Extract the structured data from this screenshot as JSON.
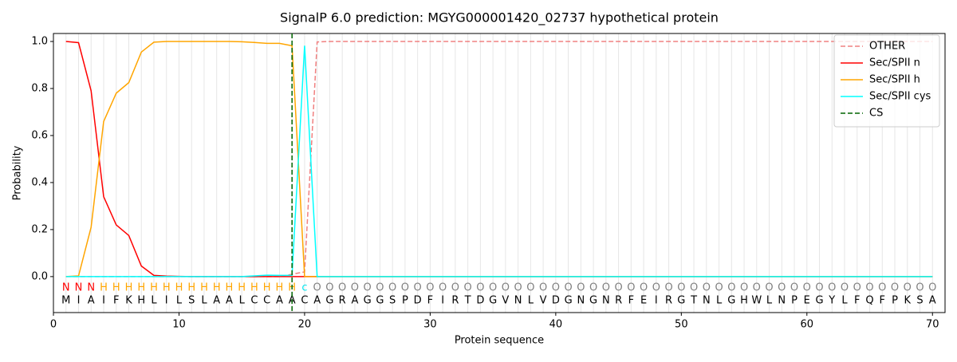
{
  "chart_data": {
    "type": "line",
    "title": "SignalP 6.0 prediction: MGYG000001420_02737 hypothetical protein",
    "x_label": "Protein sequence",
    "y_label": "Probability",
    "x": [
      1,
      2,
      3,
      4,
      5,
      6,
      7,
      8,
      9,
      10,
      11,
      12,
      13,
      14,
      15,
      16,
      17,
      18,
      19,
      20,
      21,
      22,
      23,
      24,
      25,
      26,
      27,
      28,
      29,
      30,
      31,
      32,
      33,
      34,
      35,
      36,
      37,
      38,
      39,
      40,
      41,
      42,
      43,
      44,
      45,
      46,
      47,
      48,
      49,
      50,
      51,
      52,
      53,
      54,
      55,
      56,
      57,
      58,
      59,
      60,
      61,
      62,
      63,
      64,
      65,
      66,
      67,
      68,
      69,
      70
    ],
    "sequence": [
      "M",
      "I",
      "A",
      "I",
      "F",
      "K",
      "H",
      "L",
      "I",
      "L",
      "S",
      "L",
      "A",
      "A",
      "L",
      "C",
      "C",
      "A",
      "A",
      "C",
      "A",
      "G",
      "R",
      "A",
      "G",
      "G",
      "S",
      "P",
      "D",
      "F",
      "I",
      "R",
      "T",
      "D",
      "G",
      "V",
      "N",
      "L",
      "V",
      "D",
      "G",
      "N",
      "G",
      "N",
      "R",
      "F",
      "E",
      "I",
      "R",
      "G",
      "T",
      "N",
      "L",
      "G",
      "H",
      "W",
      "L",
      "N",
      "P",
      "E",
      "G",
      "Y",
      "L",
      "F",
      "Q",
      "F",
      "P",
      "K",
      "S",
      "A"
    ],
    "labels": [
      "N",
      "N",
      "N",
      "H",
      "H",
      "H",
      "H",
      "H",
      "H",
      "H",
      "H",
      "H",
      "H",
      "H",
      "H",
      "H",
      "H",
      "H",
      "H",
      "c",
      "O",
      "O",
      "O",
      "O",
      "O",
      "O",
      "O",
      "O",
      "O",
      "O",
      "O",
      "O",
      "O",
      "O",
      "O",
      "O",
      "O",
      "O",
      "O",
      "O",
      "O",
      "O",
      "O",
      "O",
      "O",
      "O",
      "O",
      "O",
      "O",
      "O",
      "O",
      "O",
      "O",
      "O",
      "O",
      "O",
      "O",
      "O",
      "O",
      "O",
      "O",
      "O",
      "O",
      "O",
      "O",
      "O",
      "O",
      "O",
      "O",
      "O"
    ],
    "label_colors": {
      "N": "#ff0000",
      "H": "#ffa500",
      "c": "#00e5ee",
      "O": "#808080"
    },
    "series": [
      {
        "name": "OTHER",
        "color": "#f08080",
        "linestyle": "dashed",
        "values": [
          0,
          0,
          0,
          0,
          0,
          0,
          0,
          0,
          0,
          0,
          0,
          0,
          0,
          0,
          0,
          0,
          0,
          0,
          0.01,
          0.02,
          0.998,
          1,
          1,
          1,
          1,
          1,
          1,
          1,
          1,
          1,
          1,
          1,
          1,
          1,
          1,
          1,
          1,
          1,
          1,
          1,
          1,
          1,
          1,
          1,
          1,
          1,
          1,
          1,
          1,
          1,
          1,
          1,
          1,
          1,
          1,
          1,
          1,
          1,
          1,
          1,
          1,
          1,
          1,
          1,
          1,
          1,
          1,
          1,
          1,
          1
        ]
      },
      {
        "name": "Sec/SPII n",
        "color": "#ff0000",
        "linestyle": "solid",
        "values": [
          1.0,
          0.995,
          0.79,
          0.34,
          0.22,
          0.175,
          0.045,
          0.005,
          0.002,
          0.001,
          0,
          0,
          0,
          0,
          0,
          0,
          0,
          0,
          0,
          0,
          0,
          0,
          0,
          0,
          0,
          0,
          0,
          0,
          0,
          0,
          0,
          0,
          0,
          0,
          0,
          0,
          0,
          0,
          0,
          0,
          0,
          0,
          0,
          0,
          0,
          0,
          0,
          0,
          0,
          0,
          0,
          0,
          0,
          0,
          0,
          0,
          0,
          0,
          0,
          0,
          0,
          0,
          0,
          0,
          0,
          0,
          0,
          0,
          0,
          0
        ]
      },
      {
        "name": "Sec/SPII h",
        "color": "#ffa500",
        "linestyle": "solid",
        "values": [
          0,
          0.003,
          0.21,
          0.66,
          0.78,
          0.825,
          0.955,
          0.997,
          1.0,
          1.0,
          1.0,
          1.0,
          1.0,
          1.0,
          0.999,
          0.996,
          0.992,
          0.992,
          0.982,
          0,
          0,
          0,
          0,
          0,
          0,
          0,
          0,
          0,
          0,
          0,
          0,
          0,
          0,
          0,
          0,
          0,
          0,
          0,
          0,
          0,
          0,
          0,
          0,
          0,
          0,
          0,
          0,
          0,
          0,
          0,
          0,
          0,
          0,
          0,
          0,
          0,
          0,
          0,
          0,
          0,
          0,
          0,
          0,
          0,
          0,
          0,
          0,
          0,
          0,
          0
        ]
      },
      {
        "name": "Sec/SPII cys",
        "color": "#00ffff",
        "linestyle": "solid",
        "values": [
          0,
          0,
          0,
          0,
          0,
          0,
          0,
          0,
          0,
          0,
          0,
          0,
          0,
          0,
          0,
          0.003,
          0.006,
          0.005,
          0.005,
          0.982,
          0,
          0,
          0,
          0,
          0,
          0,
          0,
          0,
          0,
          0,
          0,
          0,
          0,
          0,
          0,
          0,
          0,
          0,
          0,
          0,
          0,
          0,
          0,
          0,
          0,
          0,
          0,
          0,
          0,
          0,
          0,
          0,
          0,
          0,
          0,
          0,
          0,
          0,
          0,
          0,
          0,
          0,
          0,
          0,
          0,
          0,
          0,
          0,
          0,
          0
        ]
      }
    ],
    "cleavage_site": {
      "name": "CS",
      "color": "#006400",
      "x": 19
    },
    "xlim": [
      0,
      71
    ],
    "xticks": [
      0,
      10,
      20,
      30,
      40,
      50,
      60,
      70
    ],
    "ylim": [
      -0.153,
      1.034
    ],
    "yticks": [
      {
        "value": 0,
        "label": "0.0"
      },
      {
        "value": 0.2,
        "label": "0.2"
      },
      {
        "value": 0.4,
        "label": "0.4"
      },
      {
        "value": 0.6,
        "label": "0.6"
      },
      {
        "value": 0.8,
        "label": "0.8"
      },
      {
        "value": 1,
        "label": "1.0"
      }
    ],
    "grid": true,
    "legend": "upper right"
  }
}
